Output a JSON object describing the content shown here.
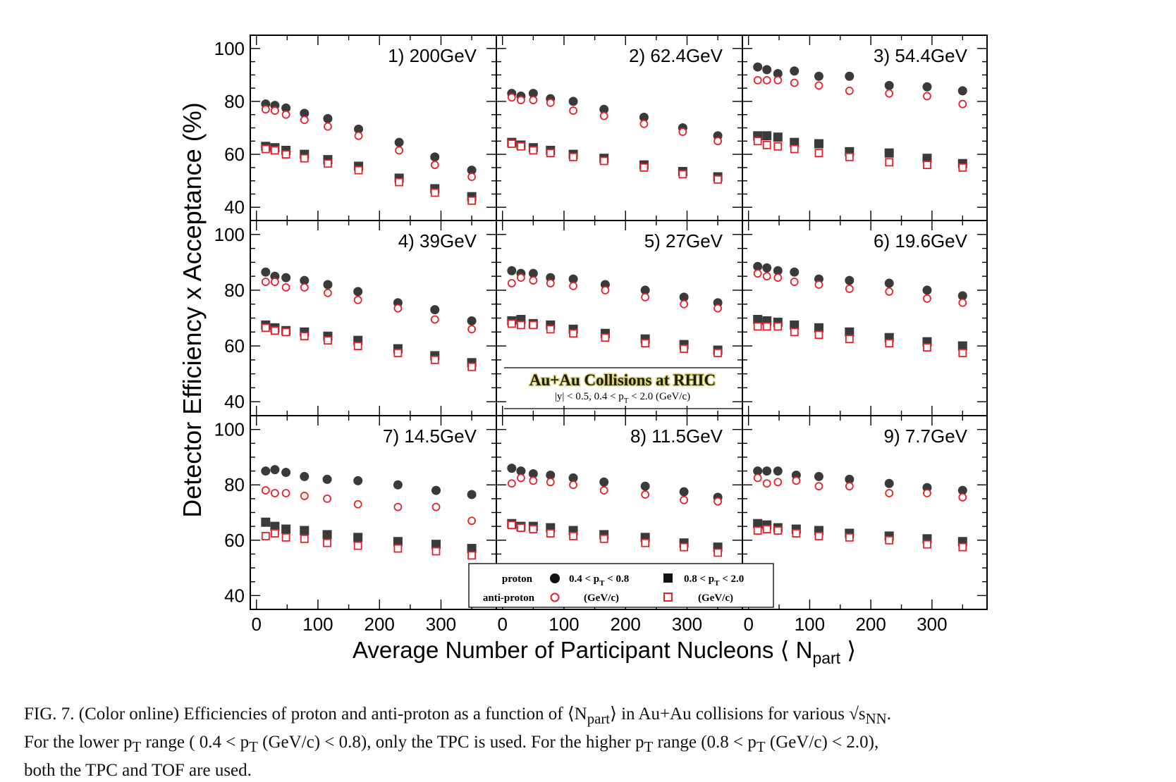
{
  "figure": {
    "ylabel": "Detector Efficiency x Acceptance (%)",
    "xlabel_main": "Average Number of Participant Nucleons",
    "xlabel_sym": "N",
    "xlabel_sub": "part",
    "colors": {
      "proton": "#3a3a3a",
      "antiproton": "#e8202a",
      "frame": "#000000"
    },
    "banner_title": "Au+Au Collisions at RHIC",
    "banner_cuts": "|y| < 0.5,  0.4 < p",
    "banner_cuts_sub": "T",
    "banner_cuts_tail": " < 2.0 (GeV/c)",
    "legend": {
      "proton": "proton",
      "antiproton": "anti-proton",
      "low_range": "0.4 < p",
      "low_range_tail": " < 0.8",
      "high_range": "0.8 < p",
      "high_range_tail": " < 2.0",
      "sub": "T",
      "unit": "(GeV/c)"
    }
  },
  "caption": {
    "line1": "FIG. 7. (Color online) Efficiencies of proton and anti-proton as a function of ⟨N",
    "line1_sub": "part",
    "line1_tail": "⟩ in Au+Au collisions for various √s",
    "line1_sub2": "NN",
    "line1_end": ".",
    "line2": "For the lower p",
    "line2_sub": "T",
    "line2_mid": " range ( 0.4 < p",
    "line2_sub2": "T",
    "line2_mid2": " (GeV/c) < 0.8), only the TPC is used. For the higher p",
    "line2_sub3": "T",
    "line2_mid3": " range (0.8 < p",
    "line2_sub4": "T",
    "line2_end": " (GeV/c) < 2.0),",
    "line3": "both the TPC and TOF are used."
  },
  "chart_data": {
    "type": "scatter",
    "x_name": "<Npart>",
    "xlim": [
      -10,
      390
    ],
    "ylim": [
      35,
      105
    ],
    "xticks": [
      0,
      100,
      200,
      300
    ],
    "yticks": [
      40,
      60,
      80,
      100
    ],
    "series_names": [
      "proton 0.4<pT<0.8",
      "anti-proton 0.4<pT<0.8",
      "proton 0.8<pT<2.0",
      "anti-proton 0.8<pT<2.0"
    ],
    "panels": [
      {
        "label": "1) 200GeV",
        "x": [
          15,
          30,
          48,
          78,
          116,
          166,
          232,
          290,
          350
        ],
        "p_low": [
          79,
          78.5,
          77.5,
          75.5,
          73.5,
          69.5,
          64.5,
          59,
          54
        ],
        "ap_low": [
          77,
          76.5,
          75,
          73,
          70.5,
          67,
          61.5,
          56,
          51.5
        ],
        "p_high": [
          63,
          62.5,
          61.5,
          60,
          58,
          55.5,
          51,
          47,
          44
        ],
        "ap_high": [
          62,
          61.5,
          60,
          58.5,
          56.5,
          54,
          49.5,
          45.5,
          42.5
        ]
      },
      {
        "label": "2) 62.4GeV",
        "x": [
          15,
          30,
          50,
          78,
          115,
          165,
          230,
          293,
          350
        ],
        "p_low": [
          83,
          82,
          83,
          81,
          80,
          77,
          74,
          70,
          67
        ],
        "ap_low": [
          81.5,
          80.5,
          80.5,
          79.5,
          76.5,
          74.5,
          71.5,
          68.5,
          65
        ],
        "p_high": [
          64.5,
          63.5,
          62.5,
          61.5,
          60,
          58.5,
          56,
          53.5,
          51.5
        ],
        "ap_high": [
          64,
          63,
          61.5,
          60.5,
          59,
          57.5,
          55,
          52.5,
          50.5
        ]
      },
      {
        "label": "3) 54.4GeV",
        "x": [
          15,
          30,
          48,
          75,
          115,
          165,
          230,
          292,
          350
        ],
        "p_low": [
          93,
          92,
          90.5,
          91.5,
          89.5,
          89.5,
          86,
          85.5,
          84
        ],
        "ap_low": [
          88,
          88,
          88,
          87,
          86,
          84,
          83,
          82,
          79
        ],
        "p_high": [
          67,
          67,
          66.5,
          64.5,
          64,
          61,
          60.5,
          58.5,
          56.5
        ],
        "ap_high": [
          65,
          63.5,
          63,
          62,
          60.5,
          59,
          57,
          56,
          55
        ]
      },
      {
        "label": "4) 39GeV",
        "x": [
          15,
          30,
          48,
          78,
          116,
          165,
          230,
          290,
          350
        ],
        "p_low": [
          86.5,
          85,
          84.5,
          83.5,
          82,
          79.5,
          75.5,
          73,
          69
        ],
        "ap_low": [
          83,
          83,
          81,
          81,
          79,
          76.5,
          73.5,
          69.5,
          66
        ],
        "p_high": [
          67.5,
          66.5,
          65.5,
          65,
          63.5,
          62,
          59,
          56.5,
          54
        ],
        "ap_high": [
          66.5,
          65.5,
          65,
          63.5,
          62,
          60,
          57.5,
          55,
          52.5
        ]
      },
      {
        "label": "5) 27GeV",
        "x": [
          15,
          30,
          50,
          78,
          115,
          167,
          232,
          295,
          350
        ],
        "p_low": [
          87,
          86,
          86,
          84.5,
          84,
          82,
          80,
          77.5,
          75.5
        ],
        "ap_low": [
          82.5,
          84.5,
          83.5,
          82.5,
          81.5,
          80,
          77.5,
          75,
          73.5
        ],
        "p_high": [
          69,
          69.5,
          68,
          67.5,
          66,
          64.5,
          62.5,
          60.5,
          58.5
        ],
        "ap_high": [
          68,
          67.5,
          67.5,
          66,
          64.5,
          63,
          61,
          59,
          57.5
        ]
      },
      {
        "label": "6) 19.6GeV",
        "x": [
          15,
          30,
          48,
          75,
          115,
          165,
          230,
          292,
          350
        ],
        "p_low": [
          88.5,
          88,
          87,
          86.5,
          84,
          83.5,
          82.5,
          80,
          78
        ],
        "ap_low": [
          86,
          85,
          84.5,
          83,
          82,
          80.5,
          79.5,
          77,
          75.5
        ],
        "p_high": [
          69.5,
          69,
          68.5,
          67.5,
          66.5,
          65,
          63,
          61.5,
          60
        ],
        "ap_high": [
          67,
          67,
          67,
          65,
          64,
          62.5,
          61,
          59.5,
          57.5
        ]
      },
      {
        "label": "7) 14.5GeV",
        "x": [
          15,
          30,
          48,
          78,
          115,
          165,
          230,
          292,
          350
        ],
        "p_low": [
          85,
          85.5,
          84.5,
          83,
          82,
          81.5,
          80,
          78,
          76.5
        ],
        "ap_low": [
          78,
          77,
          77,
          76,
          75,
          73,
          72,
          72,
          67
        ],
        "p_high": [
          66.5,
          65,
          64,
          63.5,
          62,
          61,
          59.5,
          58.5,
          57
        ],
        "ap_high": [
          61.5,
          62.5,
          61,
          60.5,
          59,
          58,
          57,
          56,
          54.5
        ]
      },
      {
        "label": "8) 11.5GeV",
        "x": [
          15,
          30,
          50,
          78,
          115,
          165,
          232,
          295,
          350
        ],
        "p_low": [
          86,
          85,
          84,
          83.5,
          82.5,
          81,
          79.5,
          77.5,
          75.5
        ],
        "ap_low": [
          80.5,
          82.5,
          81.5,
          81,
          80,
          78,
          76.5,
          74.5,
          74
        ],
        "p_high": [
          66,
          65,
          65,
          64.5,
          63.5,
          62,
          61,
          59,
          57.5
        ],
        "ap_high": [
          65.5,
          64.5,
          64,
          62.5,
          61.5,
          60.5,
          59,
          57.5,
          55.5
        ]
      },
      {
        "label": "9) 7.7GeV",
        "x": [
          15,
          30,
          48,
          78,
          115,
          165,
          230,
          292,
          350
        ],
        "p_low": [
          85,
          85,
          85,
          83.5,
          83,
          82,
          80.5,
          79,
          78
        ],
        "ap_low": [
          82.5,
          80.5,
          81,
          81.5,
          79.5,
          79.5,
          77,
          77,
          75.5
        ],
        "p_high": [
          66,
          65.5,
          64.5,
          64,
          63.5,
          62.5,
          61.5,
          60.5,
          59.5
        ],
        "ap_high": [
          63.5,
          64,
          63.5,
          62.5,
          61.5,
          61,
          60,
          58.5,
          57.5
        ]
      }
    ]
  }
}
